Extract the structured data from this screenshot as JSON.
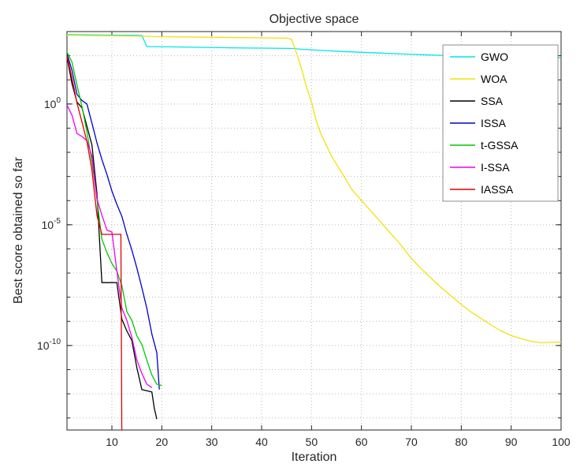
{
  "chart_data": {
    "type": "line",
    "title": "Objective space",
    "xlabel": "Iteration",
    "ylabel": "Best score obtained so far",
    "x_range": [
      1,
      100
    ],
    "x_ticks": [
      10,
      20,
      30,
      40,
      50,
      60,
      70,
      80,
      90,
      100
    ],
    "y_scale": "log10",
    "y_range_exp": [
      -13.5,
      3
    ],
    "y_tick_exponents": [
      0,
      -5,
      -10
    ],
    "grid": "dotted",
    "grid_color": "#b8b8b8",
    "axis_color": "#262626",
    "legend_position": "upper-right",
    "legend_border_color": "#8c8c8c",
    "series": [
      {
        "name": "GWO",
        "color": "#00e6e6",
        "points": [
          [
            1,
            750
          ],
          [
            5,
            730
          ],
          [
            10,
            715
          ],
          [
            14,
            700
          ],
          [
            16,
            690
          ],
          [
            17,
            240
          ],
          [
            22,
            232
          ],
          [
            28,
            222
          ],
          [
            34,
            212
          ],
          [
            40,
            206
          ],
          [
            46,
            200
          ],
          [
            48,
            185
          ],
          [
            52,
            165
          ],
          [
            56,
            150
          ],
          [
            60,
            138
          ],
          [
            64,
            128
          ],
          [
            68,
            118
          ],
          [
            72,
            110
          ],
          [
            76,
            104
          ],
          [
            80,
            99
          ],
          [
            84,
            95
          ],
          [
            88,
            91
          ],
          [
            92,
            88
          ],
          [
            96,
            85
          ],
          [
            100,
            82
          ]
        ]
      },
      {
        "name": "WOA",
        "color": "#f2e20a",
        "points": [
          [
            1,
            700
          ],
          [
            6,
            680
          ],
          [
            12,
            660
          ],
          [
            16,
            640
          ],
          [
            18,
            620
          ],
          [
            24,
            600
          ],
          [
            30,
            580
          ],
          [
            36,
            560
          ],
          [
            42,
            545
          ],
          [
            45,
            535
          ],
          [
            46,
            480
          ],
          [
            47,
            130
          ],
          [
            48,
            28
          ],
          [
            49,
            5
          ],
          [
            50,
            1.2
          ],
          [
            51,
            0.18
          ],
          [
            52,
            0.05
          ],
          [
            54,
            0.007
          ],
          [
            56,
            0.0015
          ],
          [
            58,
            0.0003
          ],
          [
            60,
            0.0001
          ],
          [
            62,
            3.5e-05
          ],
          [
            64,
            1.2e-05
          ],
          [
            66,
            4e-06
          ],
          [
            68,
            1.4e-06
          ],
          [
            70,
            4e-07
          ],
          [
            72,
            1.5e-07
          ],
          [
            74,
            6e-08
          ],
          [
            76,
            2.5e-08
          ],
          [
            78,
            1.1e-08
          ],
          [
            80,
            5e-09
          ],
          [
            82,
            2.4e-09
          ],
          [
            84,
            1.3e-09
          ],
          [
            86,
            7e-10
          ],
          [
            88,
            4e-10
          ],
          [
            90,
            2.6e-10
          ],
          [
            92,
            1.9e-10
          ],
          [
            94,
            1.5e-10
          ],
          [
            96,
            1.3e-10
          ],
          [
            100,
            1.4e-10
          ]
        ]
      },
      {
        "name": "SSA",
        "color": "#000000",
        "points": [
          [
            1,
            90
          ],
          [
            2,
            7
          ],
          [
            3,
            1.2
          ],
          [
            4,
            0.7
          ],
          [
            5,
            0.12
          ],
          [
            6,
            0.02
          ],
          [
            7,
            0.0002
          ],
          [
            8,
            4e-08
          ],
          [
            11,
            4e-08
          ],
          [
            12,
            1.2e-09
          ],
          [
            13,
            4e-10
          ],
          [
            14,
            1.6e-10
          ],
          [
            15,
            1.2e-11
          ],
          [
            16,
            1.5e-12
          ],
          [
            18,
            1.2e-12
          ],
          [
            18.5,
            2.5e-13
          ],
          [
            19,
            9e-14
          ]
        ]
      },
      {
        "name": "ISSA",
        "color": "#0000cc",
        "points": [
          [
            1,
            120
          ],
          [
            2,
            25
          ],
          [
            3,
            2.5
          ],
          [
            4,
            1.4
          ],
          [
            5,
            1.0
          ],
          [
            6,
            0.16
          ],
          [
            7,
            0.025
          ],
          [
            8,
            0.005
          ],
          [
            9,
            0.0012
          ],
          [
            10,
            0.00025
          ],
          [
            11,
            7e-05
          ],
          [
            12,
            2.2e-05
          ],
          [
            13,
            4e-06
          ],
          [
            14,
            9e-07
          ],
          [
            15,
            1.6e-07
          ],
          [
            16,
            2.5e-08
          ],
          [
            17,
            3.5e-09
          ],
          [
            18,
            3e-10
          ],
          [
            19,
            5e-11
          ],
          [
            19.5,
            1.5e-12
          ]
        ]
      },
      {
        "name": "t-GSSA",
        "color": "#00c800",
        "points": [
          [
            1,
            140
          ],
          [
            2,
            55
          ],
          [
            3,
            6
          ],
          [
            4,
            0.8
          ],
          [
            5,
            0.07
          ],
          [
            6,
            0.004
          ],
          [
            7,
            0.00012
          ],
          [
            8,
            2.5e-06
          ],
          [
            9,
            7e-07
          ],
          [
            10,
            2.5e-07
          ],
          [
            11,
            1.2e-07
          ],
          [
            12,
            3e-08
          ],
          [
            13,
            2.5e-09
          ],
          [
            14,
            1.1e-09
          ],
          [
            15,
            2.5e-10
          ],
          [
            16,
            1.1e-10
          ],
          [
            17,
            2.5e-11
          ],
          [
            18,
            6e-12
          ],
          [
            19,
            2.5e-12
          ],
          [
            20,
            2.2e-12
          ]
        ]
      },
      {
        "name": "I-SSA",
        "color": "#f000f0",
        "points": [
          [
            1,
            0.9
          ],
          [
            2,
            0.35
          ],
          [
            3,
            0.06
          ],
          [
            4,
            0.045
          ],
          [
            5,
            0.03
          ],
          [
            6,
            0.007
          ],
          [
            7,
            0.00012
          ],
          [
            8,
            2.5e-05
          ],
          [
            9,
            6e-06
          ],
          [
            10,
            5e-06
          ],
          [
            11,
            1.2e-07
          ],
          [
            12,
            3.5e-09
          ],
          [
            13,
            1.1e-09
          ],
          [
            14,
            2.2e-10
          ],
          [
            15,
            2.5e-11
          ],
          [
            16,
            7e-12
          ],
          [
            17,
            2.5e-12
          ],
          [
            18,
            1.8e-12
          ]
        ]
      },
      {
        "name": "IASSA",
        "color": "#e00000",
        "points": [
          [
            1,
            100
          ],
          [
            2,
            12
          ],
          [
            3,
            1.1
          ],
          [
            4,
            0.18
          ],
          [
            5,
            0.028
          ],
          [
            6,
            0.0018
          ],
          [
            7,
            2.5e-05
          ],
          [
            8,
            4e-06
          ],
          [
            11.8,
            4e-06
          ],
          [
            12,
            3e-15
          ]
        ]
      }
    ]
  }
}
